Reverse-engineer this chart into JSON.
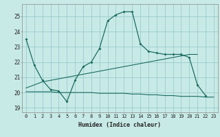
{
  "xlabel": "Humidex (Indice chaleur)",
  "bg_color": "#c8eae6",
  "grid_color": "#99cccc",
  "line_color": "#1a6b60",
  "x_ticks": [
    0,
    1,
    2,
    3,
    4,
    5,
    6,
    7,
    8,
    9,
    10,
    11,
    12,
    13,
    14,
    15,
    16,
    17,
    18,
    19,
    20,
    21,
    22,
    23
  ],
  "y_ticks": [
    19,
    20,
    21,
    22,
    23,
    24,
    25
  ],
  "xlim": [
    -0.5,
    23.5
  ],
  "ylim": [
    18.7,
    25.8
  ],
  "line1_x": [
    0,
    1,
    2,
    3,
    4,
    5,
    6,
    7,
    8,
    9,
    10,
    11,
    12,
    13,
    14,
    15,
    16,
    17,
    18,
    19,
    20,
    21,
    22
  ],
  "line1_y": [
    23.5,
    21.8,
    20.8,
    20.2,
    20.1,
    19.4,
    20.8,
    21.7,
    22.0,
    22.9,
    24.7,
    25.1,
    25.3,
    25.3,
    23.2,
    22.7,
    22.6,
    22.5,
    22.5,
    22.5,
    22.3,
    20.5,
    19.8
  ],
  "line2_x": [
    0,
    1,
    2,
    3,
    4,
    5,
    6,
    7,
    8,
    9,
    10,
    11,
    12,
    13,
    14,
    15,
    16,
    17,
    18,
    19,
    20,
    21,
    22,
    23
  ],
  "line2_y": [
    20.05,
    20.05,
    20.05,
    20.05,
    20.0,
    20.0,
    20.0,
    20.0,
    20.0,
    19.95,
    19.95,
    19.95,
    19.95,
    19.9,
    19.9,
    19.85,
    19.85,
    19.8,
    19.8,
    19.75,
    19.75,
    19.75,
    19.7,
    19.7
  ],
  "line3_x": [
    0,
    1,
    2,
    3,
    4,
    5,
    6,
    7,
    8,
    9,
    10,
    11,
    12,
    13,
    14,
    15,
    16,
    17,
    18,
    19,
    20,
    21
  ],
  "line3_y": [
    20.3,
    20.5,
    20.7,
    20.8,
    20.9,
    21.0,
    21.1,
    21.2,
    21.3,
    21.4,
    21.5,
    21.6,
    21.7,
    21.8,
    21.9,
    22.0,
    22.1,
    22.2,
    22.3,
    22.4,
    22.5,
    22.5
  ]
}
